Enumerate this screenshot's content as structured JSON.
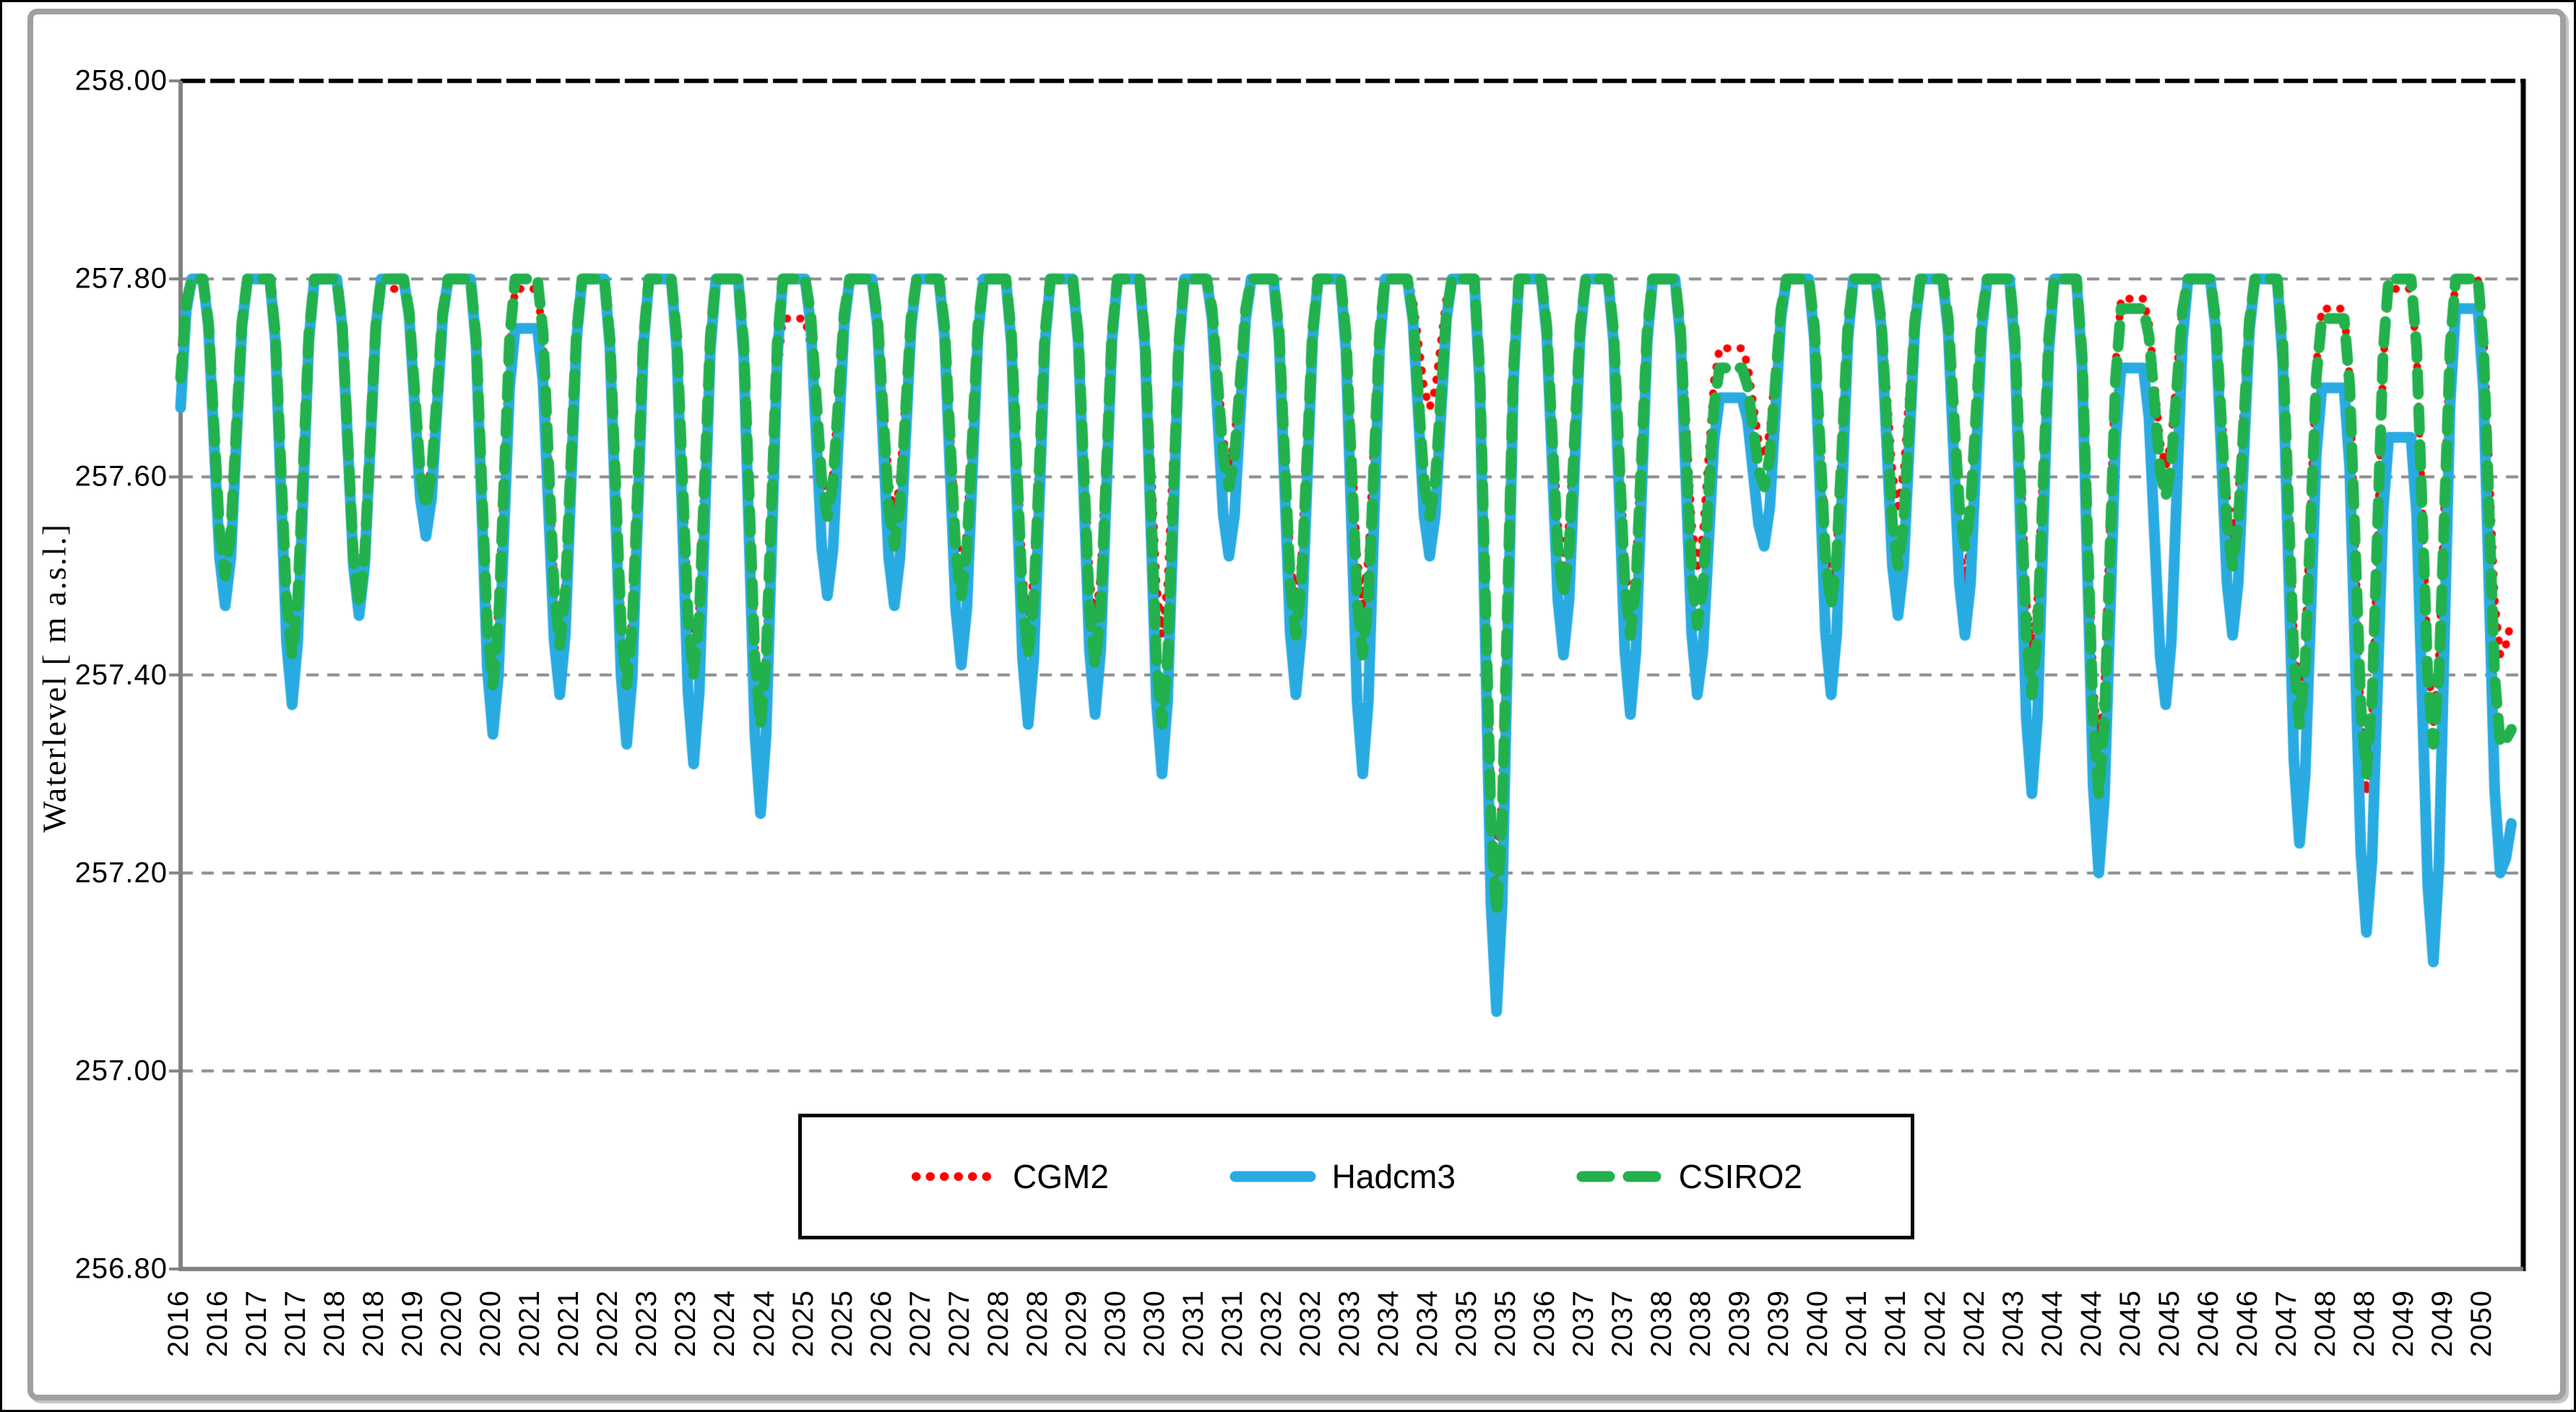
{
  "chart_data": {
    "type": "line",
    "title": "",
    "ylabel": "Waterlevel [ m a.s.l.]",
    "ylim": [
      256.8,
      258.0
    ],
    "y_ticks": [
      "258.00",
      "257.80",
      "257.60",
      "257.40",
      "257.20",
      "257.00",
      "256.80"
    ],
    "grid": "horizontal dashed gray; top border dashed black at 258.00",
    "legend_position": "bottom-center boxed",
    "x_start": "2016-01",
    "x_end": "2050-11",
    "x_tick_interval_months": 7,
    "x_tick_labels": [
      "2016",
      "2016",
      "2017",
      "2017",
      "2018",
      "2018",
      "2019",
      "2020",
      "2020",
      "2021",
      "2021",
      "2022",
      "2023",
      "2023",
      "2024",
      "2024",
      "2025",
      "2025",
      "2026",
      "2027",
      "2027",
      "2028",
      "2028",
      "2029",
      "2030",
      "2030",
      "2031",
      "2031",
      "2032",
      "2032",
      "2033",
      "2034",
      "2034",
      "2035",
      "2035",
      "2036",
      "2037",
      "2037",
      "2038",
      "2038",
      "2039",
      "2039",
      "2040",
      "2041",
      "2041",
      "2042",
      "2042",
      "2043",
      "2044",
      "2044",
      "2045",
      "2045",
      "2046",
      "2046",
      "2047",
      "2048",
      "2048",
      "2049",
      "2049",
      "2050"
    ],
    "years": [
      2016,
      2017,
      2018,
      2019,
      2020,
      2021,
      2022,
      2023,
      2024,
      2025,
      2026,
      2027,
      2028,
      2029,
      2030,
      2031,
      2032,
      2033,
      2034,
      2035,
      2036,
      2037,
      2038,
      2039,
      2040,
      2041,
      2042,
      2043,
      2044,
      2045,
      2046,
      2047,
      2048,
      2049,
      2050
    ],
    "seasonal_model": "each year: plateau at spring peak Jan-May, cosine descent Jun-Sep to autumn trough, cosine recovery Oct-Dec to next peak; values capped at 257.80",
    "series": [
      {
        "name": "CGM2",
        "color": "#FF0000",
        "style": "dotted",
        "start": 257.72,
        "end": 257.49,
        "peak_by_year": [
          257.8,
          257.8,
          257.8,
          257.79,
          257.8,
          257.79,
          257.8,
          257.8,
          257.8,
          257.76,
          257.8,
          257.8,
          257.8,
          257.8,
          257.8,
          257.8,
          257.8,
          257.8,
          257.8,
          257.8,
          257.8,
          257.8,
          257.8,
          257.73,
          257.8,
          257.8,
          257.8,
          257.8,
          257.8,
          257.78,
          257.8,
          257.8,
          257.77,
          257.79,
          257.8
        ],
        "trough_by_year": [
          257.49,
          257.42,
          257.49,
          257.58,
          257.41,
          257.44,
          257.4,
          257.41,
          257.36,
          257.57,
          257.56,
          257.5,
          257.45,
          257.45,
          257.44,
          257.61,
          257.47,
          257.47,
          257.67,
          257.19,
          257.51,
          257.46,
          257.51,
          257.62,
          257.48,
          257.57,
          257.49,
          257.42,
          257.32,
          257.61,
          257.54,
          257.37,
          257.28,
          257.35,
          257.42
        ]
      },
      {
        "name": "Hadcm3",
        "color": "#29ABE2",
        "style": "solid",
        "start": 257.67,
        "end": 257.3,
        "peak_by_year": [
          257.8,
          257.8,
          257.8,
          257.8,
          257.8,
          257.75,
          257.8,
          257.8,
          257.8,
          257.8,
          257.8,
          257.8,
          257.8,
          257.8,
          257.8,
          257.8,
          257.8,
          257.8,
          257.8,
          257.8,
          257.8,
          257.8,
          257.8,
          257.68,
          257.8,
          257.8,
          257.8,
          257.8,
          257.8,
          257.71,
          257.8,
          257.8,
          257.69,
          257.64,
          257.77
        ],
        "trough_by_year": [
          257.47,
          257.37,
          257.46,
          257.54,
          257.34,
          257.38,
          257.33,
          257.31,
          257.26,
          257.48,
          257.47,
          257.41,
          257.35,
          257.36,
          257.3,
          257.52,
          257.38,
          257.3,
          257.52,
          257.06,
          257.42,
          257.36,
          257.38,
          257.53,
          257.38,
          257.46,
          257.44,
          257.28,
          257.2,
          257.37,
          257.44,
          257.23,
          257.14,
          257.11,
          257.2
        ]
      },
      {
        "name": "CSIRO2",
        "color": "#22B14C",
        "style": "dashed",
        "start": 257.7,
        "end": 257.36,
        "peak_by_year": [
          257.8,
          257.8,
          257.8,
          257.8,
          257.8,
          257.8,
          257.8,
          257.8,
          257.8,
          257.8,
          257.8,
          257.8,
          257.8,
          257.8,
          257.8,
          257.8,
          257.8,
          257.8,
          257.8,
          257.8,
          257.8,
          257.8,
          257.8,
          257.71,
          257.8,
          257.8,
          257.8,
          257.8,
          257.8,
          257.77,
          257.8,
          257.8,
          257.76,
          257.8,
          257.8
        ],
        "trough_by_year": [
          257.5,
          257.42,
          257.47,
          257.57,
          257.39,
          257.43,
          257.39,
          257.4,
          257.35,
          257.56,
          257.53,
          257.48,
          257.42,
          257.41,
          257.35,
          257.59,
          257.44,
          257.42,
          257.56,
          257.16,
          257.48,
          257.44,
          257.45,
          257.59,
          257.47,
          257.51,
          257.53,
          257.38,
          257.28,
          257.58,
          257.51,
          257.35,
          257.3,
          257.33,
          257.33
        ]
      }
    ],
    "colors": {
      "gridline": "#8C8C8C",
      "axis": "#808080",
      "plot_border": "#000000",
      "frame": "#A0A0A0"
    }
  },
  "legend": {
    "entries": [
      {
        "label": "CGM2"
      },
      {
        "label": "Hadcm3"
      },
      {
        "label": "CSIRO2"
      }
    ]
  }
}
